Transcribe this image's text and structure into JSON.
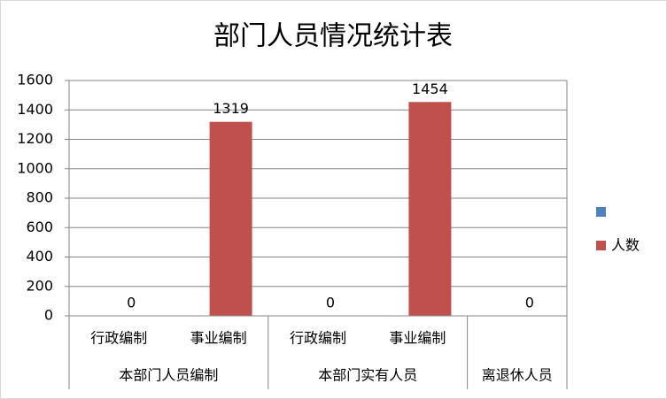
{
  "chart_data": {
    "type": "bar",
    "title": "部门人员情况统计表",
    "groups": [
      {
        "label": "本部门人员编制",
        "categories": [
          "行政编制",
          "事业编制"
        ]
      },
      {
        "label": "本部门实有人员",
        "categories": [
          "行政编制",
          "事业编制"
        ]
      },
      {
        "label": "离退休人员",
        "categories": [
          null
        ]
      }
    ],
    "series": [
      {
        "color": "#4f81bd",
        "values": [
          null,
          null,
          null,
          null,
          null
        ]
      },
      {
        "name": "人数",
        "color": "#c0504d",
        "values": [
          0,
          1319,
          0,
          1454,
          0
        ]
      }
    ],
    "ylim": [
      0,
      1600
    ],
    "yticks": [
      0,
      200,
      400,
      600,
      800,
      1000,
      1200,
      1400,
      1600
    ],
    "grid": true,
    "data_labels": true,
    "legend": "right"
  }
}
